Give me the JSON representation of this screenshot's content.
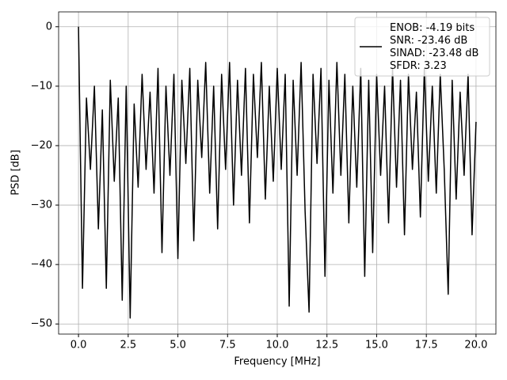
{
  "chart_data": {
    "type": "line",
    "xlabel": "Frequency [MHz]",
    "ylabel": "PSD [dB]",
    "xlim": [
      -1,
      21
    ],
    "ylim": [
      -51.7,
      2.5
    ],
    "xticks": [
      {
        "value": 0,
        "label": "0.0"
      },
      {
        "value": 2.5,
        "label": "2.5"
      },
      {
        "value": 5,
        "label": "5.0"
      },
      {
        "value": 7.5,
        "label": "7.5"
      },
      {
        "value": 10,
        "label": "10.0"
      },
      {
        "value": 12.5,
        "label": "12.5"
      },
      {
        "value": 15,
        "label": "15.0"
      },
      {
        "value": 17.5,
        "label": "17.5"
      },
      {
        "value": 20,
        "label": "20.0"
      }
    ],
    "yticks": [
      0,
      {
        "value": -10,
        "label": "−10"
      },
      {
        "value": -20,
        "label": "−20"
      },
      {
        "value": -30,
        "label": "−30"
      },
      {
        "value": -40,
        "label": "−40"
      },
      {
        "value": -50,
        "label": "−50"
      }
    ],
    "grid": true,
    "legend": "upper right",
    "x": [
      0,
      0.2,
      0.4,
      0.6,
      0.8,
      1,
      1.2,
      1.4,
      1.6,
      1.8,
      2,
      2.2,
      2.4,
      2.6,
      2.8,
      3,
      3.2,
      3.4,
      3.6,
      3.8,
      4,
      4.2,
      4.4,
      4.6,
      4.8,
      5,
      5.2,
      5.4,
      5.6,
      5.8,
      6,
      6.2,
      6.4,
      6.6,
      6.8,
      7,
      7.2,
      7.4,
      7.6,
      7.8,
      8,
      8.2,
      8.4,
      8.6,
      8.8,
      9,
      9.2,
      9.4,
      9.6,
      9.8,
      10,
      10.2,
      10.4,
      10.6,
      10.8,
      11,
      11.2,
      11.4,
      11.6,
      11.8,
      12,
      12.2,
      12.4,
      12.6,
      12.8,
      13,
      13.2,
      13.4,
      13.6,
      13.8,
      14,
      14.2,
      14.4,
      14.6,
      14.8,
      15,
      15.2,
      15.4,
      15.6,
      15.8,
      16,
      16.2,
      16.4,
      16.6,
      16.8,
      17,
      17.2,
      17.4,
      17.6,
      17.8,
      18,
      18.2,
      18.4,
      18.6,
      18.8,
      19,
      19.2,
      19.4,
      19.6,
      19.8,
      20
    ],
    "series": [
      {
        "name": "ENOB: -4.19 bits\nSNR: -23.46 dB\nSINAD: -23.48 dB\nSFDR: 3.23",
        "color": "#000000",
        "values": [
          0,
          -44,
          -12,
          -24,
          -10,
          -34,
          -14,
          -44,
          -9,
          -26,
          -12,
          -46,
          -10,
          -49,
          -13,
          -27,
          -8,
          -24,
          -11,
          -28,
          -7,
          -38,
          -10,
          -25,
          -8,
          -39,
          -9,
          -23,
          -7,
          -36,
          -9,
          -22,
          -6,
          -28,
          -10,
          -34,
          -8,
          -24,
          -6,
          -30,
          -9,
          -25,
          -7,
          -33,
          -8,
          -22,
          -6,
          -29,
          -10,
          -26,
          -7,
          -24,
          -8,
          -47,
          -9,
          -25,
          -6,
          -31,
          -48,
          -8,
          -23,
          -7,
          -42,
          -9,
          -28,
          -6,
          -25,
          -8,
          -33,
          -10,
          -27,
          -7,
          -42,
          -9,
          -38,
          -8,
          -25,
          -10,
          -33,
          -7,
          -27,
          -9,
          -35,
          -8,
          -24,
          -11,
          -32,
          -7,
          -26,
          -10,
          -28,
          -8,
          -24,
          -45,
          -9,
          -29,
          -11,
          -25,
          -8,
          -35,
          -16
        ]
      }
    ]
  }
}
